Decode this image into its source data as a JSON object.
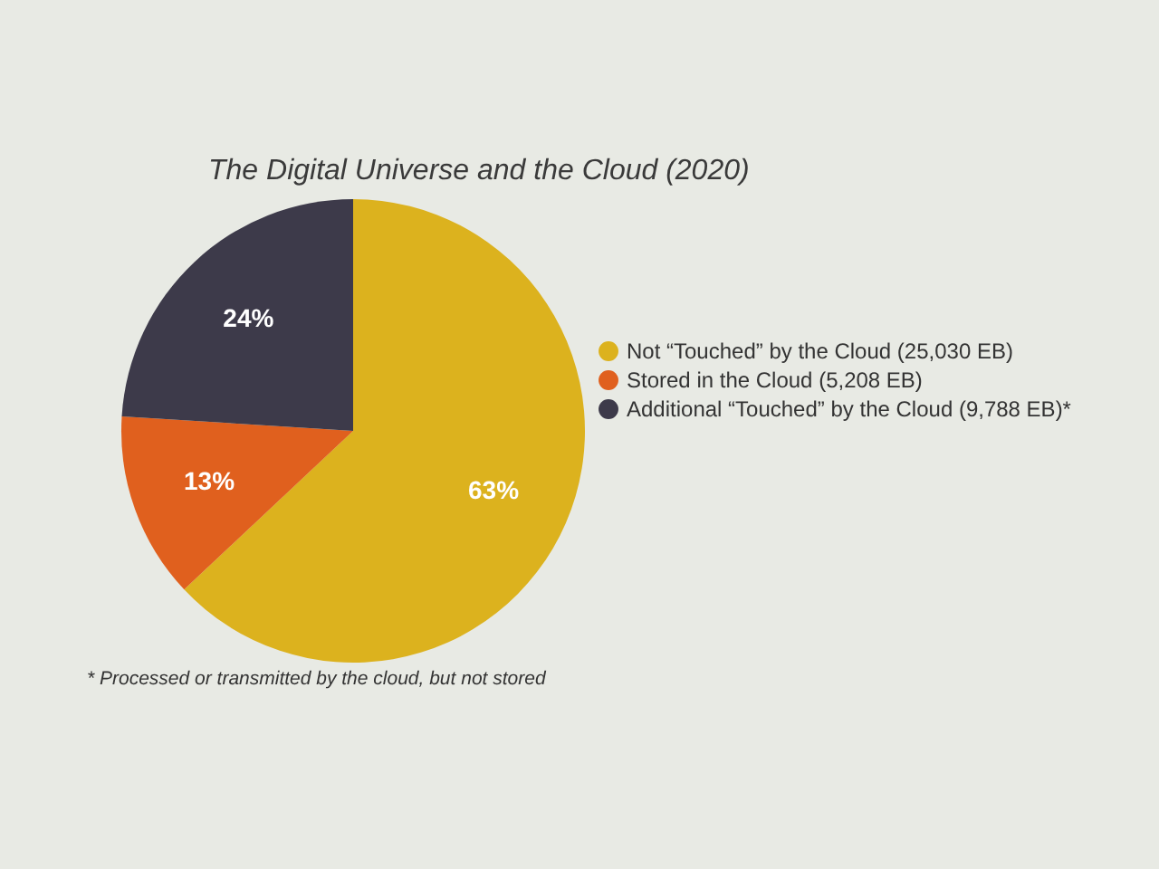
{
  "chart_data": {
    "type": "pie",
    "title": "The Digital Universe and the Cloud (2020)",
    "categories": [
      "Not “Touched” by the Cloud (25,030 EB)",
      "Stored in the Cloud (5,208 EB)",
      "Additional “Touched” by the Cloud (9,788 EB)*"
    ],
    "values": [
      63,
      13,
      24
    ],
    "colors": [
      "#dcb21e",
      "#e0601e",
      "#3d3a4a"
    ],
    "value_labels": [
      "63%",
      "13%",
      "24%"
    ],
    "legend": "right",
    "annotations": [
      "* Processed or transmitted by the cloud, but not stored"
    ]
  }
}
